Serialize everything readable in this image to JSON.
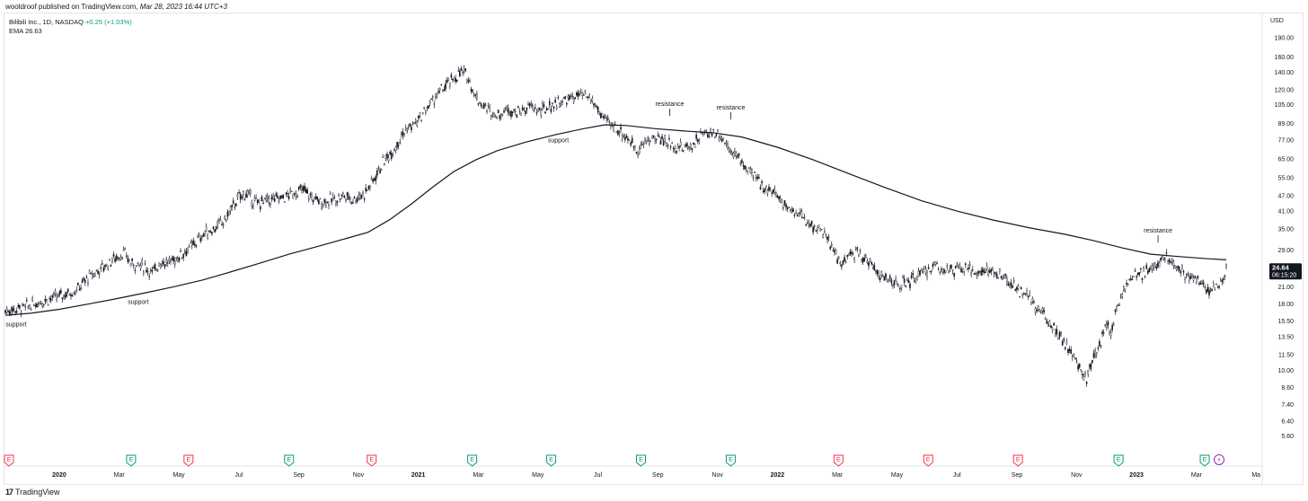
{
  "header": {
    "author": "wooldroof",
    "published_text": "published on TradingView.com,",
    "date_text": "Mar 28, 2023 16:44 UTC+3"
  },
  "legend": {
    "symbol_line": "Bilibili Inc., 1D, NASDAQ",
    "change_text": "+0.25 (+1.03%)",
    "ema_label": "EMA",
    "ema_value": "26.63"
  },
  "footer": {
    "logo_mark": "17",
    "brand": "TradingView"
  },
  "colors": {
    "candle": "#131722",
    "ema": "#131722",
    "price_badge_bg": "#131722",
    "earnings_red": "#f23645",
    "earnings_green": "#089981",
    "dividend_purple": "#9c27b0",
    "grid": "#e0e3eb"
  },
  "chart_data": {
    "type": "line",
    "title": "Bilibili Inc., 1D, NASDAQ",
    "ylabel": "USD",
    "yscale": "log",
    "ylim": [
      5.0,
      230.0
    ],
    "y_ticks": [
      "190.00",
      "160.00",
      "140.00",
      "120.00",
      "105.00",
      "89.00",
      "77.00",
      "65.00",
      "55.00",
      "47.00",
      "41.00",
      "35.00",
      "29.00",
      "25.00",
      "21.00",
      "18.00",
      "15.50",
      "13.50",
      "11.50",
      "10.00",
      "8.60",
      "7.40",
      "6.40",
      "5.60"
    ],
    "x_ticks": [
      {
        "label": "2020",
        "t": 2020.0,
        "year": true
      },
      {
        "label": "Mar",
        "t": 2020.167
      },
      {
        "label": "May",
        "t": 2020.333
      },
      {
        "label": "Jul",
        "t": 2020.5
      },
      {
        "label": "Sep",
        "t": 2020.667
      },
      {
        "label": "Nov",
        "t": 2020.833
      },
      {
        "label": "2021",
        "t": 2021.0,
        "year": true
      },
      {
        "label": "Mar",
        "t": 2021.167
      },
      {
        "label": "May",
        "t": 2021.333
      },
      {
        "label": "Jul",
        "t": 2021.5
      },
      {
        "label": "Sep",
        "t": 2021.667
      },
      {
        "label": "Nov",
        "t": 2021.833
      },
      {
        "label": "2022",
        "t": 2022.0,
        "year": true
      },
      {
        "label": "Mar",
        "t": 2022.167
      },
      {
        "label": "May",
        "t": 2022.333
      },
      {
        "label": "Jul",
        "t": 2022.5
      },
      {
        "label": "Sep",
        "t": 2022.667
      },
      {
        "label": "Nov",
        "t": 2022.833
      },
      {
        "label": "2023",
        "t": 2023.0,
        "year": true
      },
      {
        "label": "Mar",
        "t": 2023.167
      },
      {
        "label": "Ma",
        "t": 2023.333
      }
    ],
    "xlim": [
      2019.85,
      2023.35
    ],
    "series": [
      {
        "name": "Price",
        "style": "candles",
        "points": [
          [
            2019.85,
            17.0
          ],
          [
            2019.9,
            17.4
          ],
          [
            2019.95,
            18.5
          ],
          [
            2020.0,
            19.3
          ],
          [
            2020.05,
            20.5
          ],
          [
            2020.08,
            22.7
          ],
          [
            2020.12,
            24.8
          ],
          [
            2020.15,
            26.8
          ],
          [
            2020.18,
            28.3
          ],
          [
            2020.2,
            25.8
          ],
          [
            2020.22,
            25.5
          ],
          [
            2020.24,
            25.0
          ],
          [
            2020.26,
            23.6
          ],
          [
            2020.28,
            26.2
          ],
          [
            2020.31,
            26.0
          ],
          [
            2020.34,
            28.0
          ],
          [
            2020.37,
            30.1
          ],
          [
            2020.4,
            33.3
          ],
          [
            2020.43,
            35.1
          ],
          [
            2020.46,
            37.5
          ],
          [
            2020.48,
            42.0
          ],
          [
            2020.5,
            46.1
          ],
          [
            2020.52,
            48.0
          ],
          [
            2020.55,
            43.8
          ],
          [
            2020.58,
            45.1
          ],
          [
            2020.62,
            46.0
          ],
          [
            2020.65,
            48.0
          ],
          [
            2020.68,
            49.6
          ],
          [
            2020.7,
            46.5
          ],
          [
            2020.73,
            44.5
          ],
          [
            2020.76,
            45.2
          ],
          [
            2020.79,
            47.0
          ],
          [
            2020.82,
            45.6
          ],
          [
            2020.85,
            48.0
          ],
          [
            2020.87,
            52.7
          ],
          [
            2020.9,
            62.5
          ],
          [
            2020.93,
            70.8
          ],
          [
            2020.96,
            82.6
          ],
          [
            2021.0,
            91.2
          ],
          [
            2021.03,
            104.8
          ],
          [
            2021.06,
            117.9
          ],
          [
            2021.09,
            128.8
          ],
          [
            2021.12,
            140.6
          ],
          [
            2021.14,
            133.1
          ],
          [
            2021.16,
            112.4
          ],
          [
            2021.19,
            101.4
          ],
          [
            2021.22,
            96.0
          ],
          [
            2021.25,
            101.4
          ],
          [
            2021.28,
            98.1
          ],
          [
            2021.31,
            103.6
          ],
          [
            2021.34,
            99.0
          ],
          [
            2021.38,
            106.0
          ],
          [
            2021.42,
            110.6
          ],
          [
            2021.45,
            114.6
          ],
          [
            2021.48,
            110.6
          ],
          [
            2021.5,
            100.4
          ],
          [
            2021.52,
            91.2
          ],
          [
            2021.55,
            85.9
          ],
          [
            2021.58,
            78.8
          ],
          [
            2021.61,
            70.3
          ],
          [
            2021.64,
            77.1
          ],
          [
            2021.67,
            78.6
          ],
          [
            2021.7,
            74.6
          ],
          [
            2021.73,
            71.3
          ],
          [
            2021.76,
            73.1
          ],
          [
            2021.79,
            80.7
          ],
          [
            2021.82,
            82.6
          ],
          [
            2021.84,
            80.3
          ],
          [
            2021.87,
            70.8
          ],
          [
            2021.9,
            63.3
          ],
          [
            2021.93,
            56.3
          ],
          [
            2021.96,
            51.5
          ],
          [
            2022.0,
            47.0
          ],
          [
            2022.03,
            42.3
          ],
          [
            2022.06,
            40.1
          ],
          [
            2022.09,
            36.4
          ],
          [
            2022.12,
            35.0
          ],
          [
            2022.15,
            29.9
          ],
          [
            2022.18,
            25.4
          ],
          [
            2022.2,
            27.5
          ],
          [
            2022.22,
            28.4
          ],
          [
            2022.25,
            26.8
          ],
          [
            2022.28,
            23.9
          ],
          [
            2022.31,
            22.1
          ],
          [
            2022.34,
            21.3
          ],
          [
            2022.37,
            22.1
          ],
          [
            2022.4,
            23.4
          ],
          [
            2022.44,
            25.3
          ],
          [
            2022.48,
            24.3
          ],
          [
            2022.52,
            24.4
          ],
          [
            2022.56,
            24.1
          ],
          [
            2022.6,
            24.1
          ],
          [
            2022.63,
            22.5
          ],
          [
            2022.66,
            21.1
          ],
          [
            2022.7,
            18.9
          ],
          [
            2022.73,
            17.1
          ],
          [
            2022.76,
            15.3
          ],
          [
            2022.79,
            13.6
          ],
          [
            2022.82,
            11.4
          ],
          [
            2022.84,
            10.3
          ],
          [
            2022.86,
            9.3
          ],
          [
            2022.88,
            11.1
          ],
          [
            2022.9,
            13.0
          ],
          [
            2022.92,
            15.4
          ],
          [
            2022.93,
            14.1
          ],
          [
            2022.95,
            18.4
          ],
          [
            2022.97,
            21.6
          ],
          [
            2023.0,
            23.1
          ],
          [
            2023.03,
            24.1
          ],
          [
            2023.06,
            25.8
          ],
          [
            2023.08,
            27.5
          ],
          [
            2023.1,
            26.4
          ],
          [
            2023.12,
            24.6
          ],
          [
            2023.15,
            23.0
          ],
          [
            2023.18,
            21.9
          ],
          [
            2023.2,
            20.4
          ],
          [
            2023.22,
            21.1
          ],
          [
            2023.24,
            22.0
          ],
          [
            2023.25,
            24.6
          ]
        ]
      },
      {
        "name": "EMA",
        "style": "line",
        "points": [
          [
            2019.85,
            16.3
          ],
          [
            2019.92,
            16.6
          ],
          [
            2020.0,
            17.2
          ],
          [
            2020.08,
            18.0
          ],
          [
            2020.16,
            18.9
          ],
          [
            2020.24,
            19.9
          ],
          [
            2020.32,
            21.0
          ],
          [
            2020.4,
            22.3
          ],
          [
            2020.48,
            24.0
          ],
          [
            2020.56,
            25.9
          ],
          [
            2020.64,
            28.0
          ],
          [
            2020.72,
            30.0
          ],
          [
            2020.8,
            32.2
          ],
          [
            2020.86,
            34.0
          ],
          [
            2020.92,
            38.0
          ],
          [
            2020.98,
            43.6
          ],
          [
            2021.04,
            50.7
          ],
          [
            2021.1,
            58.3
          ],
          [
            2021.16,
            64.5
          ],
          [
            2021.22,
            70.0
          ],
          [
            2021.3,
            75.5
          ],
          [
            2021.38,
            80.5
          ],
          [
            2021.46,
            85.0
          ],
          [
            2021.52,
            88.0
          ],
          [
            2021.58,
            87.4
          ],
          [
            2021.66,
            85.0
          ],
          [
            2021.74,
            83.3
          ],
          [
            2021.82,
            82.0
          ],
          [
            2021.9,
            79.0
          ],
          [
            2022.0,
            72.1
          ],
          [
            2022.1,
            64.5
          ],
          [
            2022.2,
            57.0
          ],
          [
            2022.3,
            50.5
          ],
          [
            2022.4,
            45.0
          ],
          [
            2022.5,
            41.0
          ],
          [
            2022.6,
            37.9
          ],
          [
            2022.7,
            35.4
          ],
          [
            2022.8,
            33.4
          ],
          [
            2022.88,
            31.6
          ],
          [
            2022.96,
            29.6
          ],
          [
            2023.04,
            28.0
          ],
          [
            2023.12,
            27.4
          ],
          [
            2023.2,
            26.9
          ],
          [
            2023.25,
            26.63
          ]
        ]
      }
    ],
    "annotations": [
      {
        "label": "support",
        "t": 2019.88,
        "price": 15.9
      },
      {
        "label": "support",
        "t": 2020.22,
        "price": 19.4
      },
      {
        "label": "support",
        "t": 2021.39,
        "price": 81.0
      },
      {
        "label": "resistance",
        "t": 2021.7,
        "price": 97.5
      },
      {
        "label": "resistance",
        "t": 2021.87,
        "price": 94.5
      },
      {
        "label": "resistance",
        "t": 2023.06,
        "price": 31.8
      }
    ],
    "last_price": {
      "value": "24.64",
      "countdown": "06:15:20",
      "price": 24.64
    },
    "event_markers": [
      {
        "t": 2019.86,
        "kind": "E",
        "color": "red"
      },
      {
        "t": 2020.2,
        "kind": "E",
        "color": "green"
      },
      {
        "t": 2020.36,
        "kind": "E",
        "color": "red"
      },
      {
        "t": 2020.64,
        "kind": "E",
        "color": "green"
      },
      {
        "t": 2020.87,
        "kind": "E",
        "color": "red"
      },
      {
        "t": 2021.15,
        "kind": "E",
        "color": "green"
      },
      {
        "t": 2021.37,
        "kind": "E",
        "color": "green"
      },
      {
        "t": 2021.62,
        "kind": "E",
        "color": "green"
      },
      {
        "t": 2021.87,
        "kind": "E",
        "color": "green"
      },
      {
        "t": 2022.17,
        "kind": "E",
        "color": "red"
      },
      {
        "t": 2022.42,
        "kind": "E",
        "color": "red"
      },
      {
        "t": 2022.67,
        "kind": "E",
        "color": "red"
      },
      {
        "t": 2022.95,
        "kind": "E",
        "color": "green"
      },
      {
        "t": 2023.19,
        "kind": "E",
        "color": "green"
      },
      {
        "t": 2023.23,
        "kind": "⚡",
        "color": "purple"
      }
    ]
  }
}
